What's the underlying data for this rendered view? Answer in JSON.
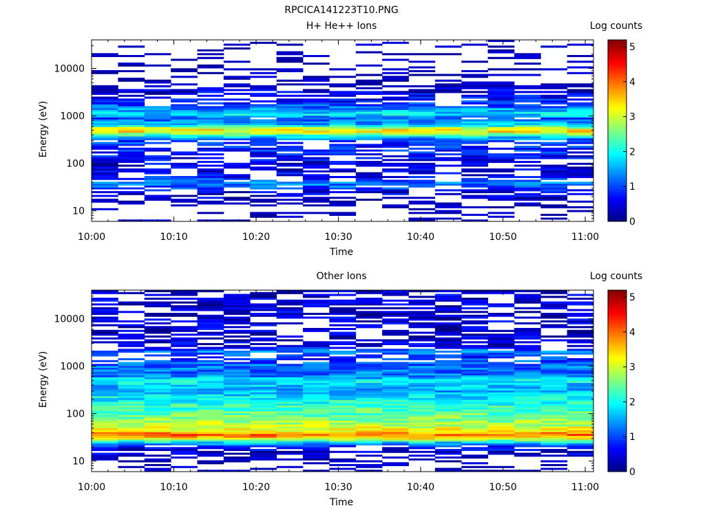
{
  "figure_title": "RPCICA141223T10.PNG",
  "chart_data": [
    {
      "type": "heatmap",
      "panel": "top",
      "title": "H+ He++ Ions",
      "xlabel": "Time",
      "ylabel": "Energy (eV)",
      "x_range": [
        "10:00",
        "11:01"
      ],
      "x_ticks": [
        "10:00",
        "10:10",
        "10:20",
        "10:30",
        "10:40",
        "10:50",
        "11:00"
      ],
      "y_scale": "log",
      "y_range": [
        6,
        40000
      ],
      "y_ticks": [
        "10",
        "100",
        "1000",
        "10000"
      ],
      "colorbar": {
        "label": "Log counts",
        "range": [
          0,
          5.2
        ],
        "ticks": [
          "0",
          "1",
          "2",
          "3",
          "4",
          "5"
        ],
        "colormap": "jet"
      },
      "time_bins": 19,
      "energy_profile": [
        {
          "energy_eV": 10.5,
          "log_counts": 0.1,
          "note": "sparse"
        },
        {
          "energy_eV": 25,
          "log_counts": 0.5
        },
        {
          "energy_eV": 30,
          "log_counts": 0.9
        },
        {
          "energy_eV": 35,
          "log_counts": 1.2
        },
        {
          "energy_eV": 40,
          "log_counts": 1.3
        },
        {
          "energy_eV": 45,
          "log_counts": 1.0
        },
        {
          "energy_eV": 55,
          "log_counts": 0.6
        },
        {
          "energy_eV": 80,
          "log_counts": 0.4
        },
        {
          "energy_eV": 300,
          "log_counts": 1.0
        },
        {
          "energy_eV": 350,
          "log_counts": 1.6
        },
        {
          "energy_eV": 420,
          "log_counts": 2.6
        },
        {
          "energy_eV": 480,
          "log_counts": 3.5
        },
        {
          "energy_eV": 550,
          "log_counts": 3.0
        },
        {
          "energy_eV": 650,
          "log_counts": 1.6
        },
        {
          "energy_eV": 900,
          "log_counts": 1.1
        },
        {
          "energy_eV": 1100,
          "log_counts": 1.9
        },
        {
          "energy_eV": 1400,
          "log_counts": 1.4
        },
        {
          "energy_eV": 1800,
          "log_counts": 0.9
        },
        {
          "energy_eV": 2200,
          "log_counts": 0.7
        },
        {
          "energy_eV": 5000,
          "log_counts": 0.2
        },
        {
          "energy_eV": 30000,
          "log_counts": 0.1
        }
      ]
    },
    {
      "type": "heatmap",
      "panel": "bottom",
      "title": "Other Ions",
      "xlabel": "Time",
      "ylabel": "Energy (eV)",
      "x_range": [
        "10:00",
        "11:01"
      ],
      "x_ticks": [
        "10:00",
        "10:10",
        "10:20",
        "10:30",
        "10:40",
        "10:50",
        "11:00"
      ],
      "y_scale": "log",
      "y_range": [
        6,
        40000
      ],
      "y_ticks": [
        "10",
        "100",
        "1000",
        "10000"
      ],
      "colorbar": {
        "label": "Log counts",
        "range": [
          0,
          5.2
        ],
        "ticks": [
          "0",
          "1",
          "2",
          "3",
          "4",
          "5"
        ],
        "colormap": "jet"
      },
      "time_bins": 19,
      "energy_profile": [
        {
          "energy_eV": 10.5,
          "log_counts": 0.15,
          "note": "sparse"
        },
        {
          "energy_eV": 20,
          "log_counts": 0.6
        },
        {
          "energy_eV": 25,
          "log_counts": 1.8
        },
        {
          "energy_eV": 30,
          "log_counts": 3.3
        },
        {
          "energy_eV": 35,
          "log_counts": 4.1
        },
        {
          "energy_eV": 40,
          "log_counts": 3.7
        },
        {
          "energy_eV": 45,
          "log_counts": 3.2
        },
        {
          "energy_eV": 55,
          "log_counts": 3.0
        },
        {
          "energy_eV": 70,
          "log_counts": 2.7
        },
        {
          "energy_eV": 90,
          "log_counts": 2.5
        },
        {
          "energy_eV": 120,
          "log_counts": 2.3
        },
        {
          "energy_eV": 160,
          "log_counts": 2.1
        },
        {
          "energy_eV": 220,
          "log_counts": 1.9
        },
        {
          "energy_eV": 300,
          "log_counts": 1.5
        },
        {
          "energy_eV": 400,
          "log_counts": 1.7
        },
        {
          "energy_eV": 500,
          "log_counts": 2.0
        },
        {
          "energy_eV": 650,
          "log_counts": 1.2
        },
        {
          "energy_eV": 1100,
          "log_counts": 1.2
        },
        {
          "energy_eV": 1500,
          "log_counts": 0.8
        },
        {
          "energy_eV": 2100,
          "log_counts": 1.3
        },
        {
          "energy_eV": 2600,
          "log_counts": 0.4
        }
      ]
    }
  ]
}
